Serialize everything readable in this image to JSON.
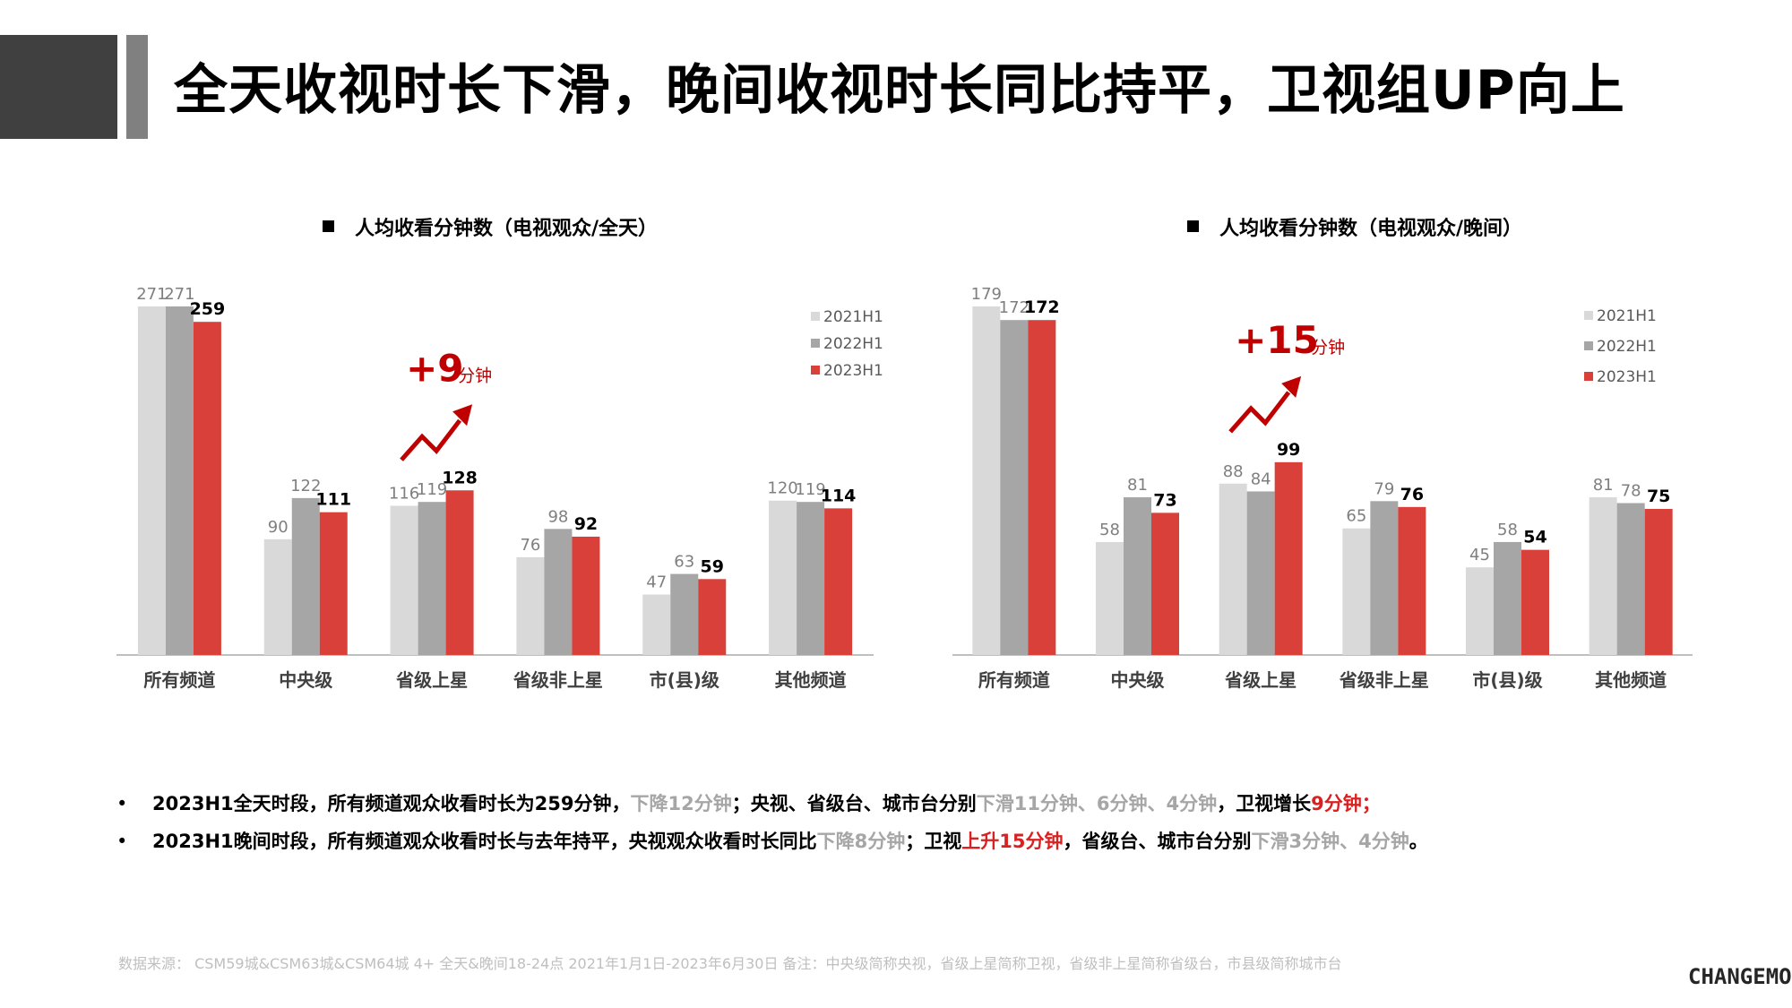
{
  "page": {
    "title": "全天收视时长下滑，晚间收视时长同比持平，卫视组UP向上",
    "source": "数据来源：  CSM59城&CSM63城&CSM64城  4+  全天&晚间18-24点   2021年1月1日-2023年6月30日     备注：中央级简称央视，省级上星简称卫视，省级非上星简称省级台，市县级简称城市台",
    "logo": "CHANGEMO"
  },
  "colors": {
    "s2021": "#d9d9d9",
    "s2022": "#a6a6a6",
    "s2023": "#d9403a",
    "accent": "#c00000",
    "axis": "#bfbfbf"
  },
  "bullets": [
    {
      "segments": [
        {
          "text": "2023H1全天时段，所有频道观众收看时长为259分钟，",
          "style": ""
        },
        {
          "text": "下降12分钟",
          "style": "grey"
        },
        {
          "text": "；央视、省级台、城市台分别",
          "style": ""
        },
        {
          "text": "下滑11分钟、6分钟、4分钟",
          "style": "grey"
        },
        {
          "text": "，卫视增长",
          "style": ""
        },
        {
          "text": "9分钟；",
          "style": "red"
        }
      ]
    },
    {
      "segments": [
        {
          "text": "2023H1晚间时段，所有频道观众收看时长与去年持平，央视观众收看时长同比",
          "style": ""
        },
        {
          "text": "下降8分钟",
          "style": "grey"
        },
        {
          "text": "；卫视",
          "style": ""
        },
        {
          "text": "上升15分钟",
          "style": "red"
        },
        {
          "text": "，省级台、城市台分别",
          "style": ""
        },
        {
          "text": "下滑3分钟、4分钟",
          "style": "grey"
        },
        {
          "text": "。",
          "style": ""
        }
      ]
    }
  ],
  "chart_data": [
    {
      "type": "bar",
      "title": "人均收看分钟数（电视观众/全天）",
      "categories": [
        "所有频道",
        "中央级",
        "省级上星",
        "省级非上星",
        "市(县)级",
        "其他频道"
      ],
      "series": [
        {
          "name": "2021H1",
          "values": [
            271,
            90,
            116,
            76,
            47,
            120
          ]
        },
        {
          "name": "2022H1",
          "values": [
            271,
            122,
            119,
            98,
            63,
            119
          ]
        },
        {
          "name": "2023H1",
          "values": [
            259,
            111,
            128,
            92,
            59,
            114
          ]
        }
      ],
      "ylim": [
        0,
        271
      ],
      "legend": "top-right",
      "grid": false,
      "annotation": {
        "big": "+9",
        "small": "分钟",
        "category": "省级上星"
      }
    },
    {
      "type": "bar",
      "title": "人均收看分钟数（电视观众/晚间）",
      "categories": [
        "所有频道",
        "中央级",
        "省级上星",
        "省级非上星",
        "市(县)级",
        "其他频道"
      ],
      "series": [
        {
          "name": "2021H1",
          "values": [
            179,
            58,
            88,
            65,
            45,
            81
          ]
        },
        {
          "name": "2022H1",
          "values": [
            172,
            81,
            84,
            79,
            58,
            78
          ]
        },
        {
          "name": "2023H1",
          "values": [
            172,
            73,
            99,
            76,
            54,
            75
          ]
        }
      ],
      "ylim": [
        0,
        179
      ],
      "legend": "top-right",
      "grid": false,
      "annotation": {
        "big": "+15",
        "small": "分钟",
        "category": "省级上星"
      }
    }
  ]
}
